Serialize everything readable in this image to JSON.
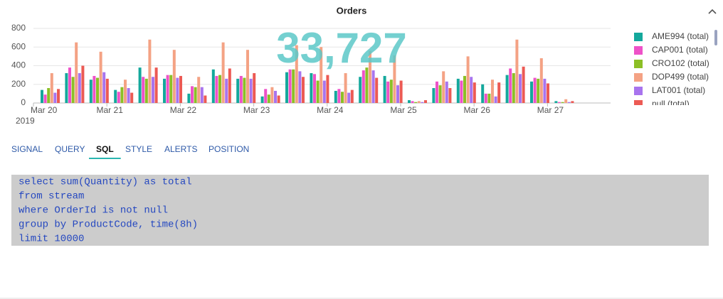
{
  "panel": {
    "title": "Orders"
  },
  "big_number": "33,727",
  "chart_data": {
    "type": "bar",
    "categories": [
      "Mar 20",
      null,
      null,
      "Mar 21",
      null,
      null,
      "Mar 22",
      null,
      null,
      "Mar 23",
      null,
      null,
      "Mar 24",
      null,
      null,
      "Mar 25",
      null,
      null,
      "Mar 26",
      null,
      null,
      "Mar 27"
    ],
    "year_label": "2019",
    "series": [
      {
        "name": "AME994 (total)",
        "color": "#14a89c",
        "values": [
          140,
          320,
          250,
          140,
          380,
          260,
          100,
          360,
          260,
          70,
          330,
          320,
          130,
          280,
          290,
          30,
          160,
          260,
          200,
          300,
          230,
          20
        ]
      },
      {
        "name": "CAP001 (total)",
        "color": "#ee52c8",
        "values": [
          90,
          380,
          290,
          120,
          280,
          300,
          180,
          290,
          290,
          150,
          360,
          310,
          150,
          350,
          230,
          20,
          230,
          240,
          100,
          370,
          270,
          10
        ]
      },
      {
        "name": "CRO102 (total)",
        "color": "#8cbf26",
        "values": [
          160,
          280,
          270,
          170,
          260,
          300,
          170,
          300,
          270,
          90,
          360,
          240,
          120,
          380,
          250,
          10,
          190,
          290,
          100,
          320,
          260,
          10
        ]
      },
      {
        "name": "DOP499 (total)",
        "color": "#f4a284",
        "values": [
          320,
          650,
          550,
          250,
          680,
          570,
          280,
          650,
          570,
          170,
          620,
          600,
          320,
          560,
          510,
          20,
          340,
          500,
          250,
          680,
          480,
          40
        ]
      },
      {
        "name": "LAT001 (total)",
        "color": "#a874ee",
        "values": [
          110,
          320,
          330,
          160,
          280,
          270,
          170,
          260,
          260,
          130,
          340,
          240,
          110,
          350,
          190,
          10,
          230,
          280,
          70,
          310,
          260,
          10
        ]
      },
      {
        "name": "null (total)",
        "color": "#ec5a54",
        "values": [
          150,
          400,
          260,
          110,
          380,
          290,
          80,
          370,
          320,
          80,
          280,
          300,
          140,
          270,
          240,
          30,
          160,
          220,
          220,
          390,
          210,
          20
        ]
      }
    ],
    "ylim": [
      0,
      800
    ],
    "yticks": [
      0,
      200,
      400,
      600,
      800
    ],
    "grid": true
  },
  "tabs": [
    "SIGNAL",
    "QUERY",
    "SQL",
    "STYLE",
    "ALERTS",
    "POSITION"
  ],
  "active_tab": 2,
  "query": [
    "select sum(Quantity) as total",
    "from stream",
    "where OrderId is not null",
    "group by ProductCode, time(8h)",
    "limit 10000"
  ]
}
